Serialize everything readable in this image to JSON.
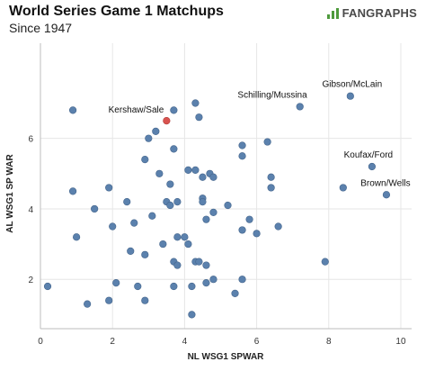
{
  "header": {
    "title": "World Series Game 1 Matchups",
    "subtitle": "Since 1947",
    "brand": "FANGRAPHS"
  },
  "colors": {
    "point": "#5b81ad",
    "point_stroke": "#44658c",
    "highlight": "#d9534f",
    "grid": "#e6e6e6",
    "axis": "#bdbdbd"
  },
  "icons": {
    "brand": "fangraphs-logo-icon"
  },
  "chart_data": {
    "type": "scatter",
    "title": "World Series Game 1 Matchups",
    "subtitle": "Since 1947",
    "xlabel": "NL WSG1 SPWAR",
    "ylabel": "AL WSG1 SP WAR",
    "xlim": [
      0,
      10.3
    ],
    "ylim": [
      0.6,
      8.7
    ],
    "xticks": [
      0,
      2,
      4,
      6,
      8,
      10
    ],
    "yticks": [
      2,
      4,
      6
    ],
    "grid": true,
    "points": [
      {
        "x": 0.2,
        "y": 1.8
      },
      {
        "x": 0.9,
        "y": 6.8
      },
      {
        "x": 0.9,
        "y": 4.5
      },
      {
        "x": 1.0,
        "y": 3.2
      },
      {
        "x": 1.3,
        "y": 1.3
      },
      {
        "x": 1.5,
        "y": 4.0
      },
      {
        "x": 1.9,
        "y": 4.6
      },
      {
        "x": 1.9,
        "y": 1.4
      },
      {
        "x": 2.0,
        "y": 3.5
      },
      {
        "x": 2.1,
        "y": 1.9
      },
      {
        "x": 2.4,
        "y": 4.2
      },
      {
        "x": 2.5,
        "y": 2.8
      },
      {
        "x": 2.6,
        "y": 3.6
      },
      {
        "x": 2.7,
        "y": 1.8
      },
      {
        "x": 2.9,
        "y": 1.4
      },
      {
        "x": 2.9,
        "y": 5.4
      },
      {
        "x": 2.9,
        "y": 2.7
      },
      {
        "x": 3.0,
        "y": 6.0
      },
      {
        "x": 3.1,
        "y": 3.8
      },
      {
        "x": 3.2,
        "y": 6.2
      },
      {
        "x": 3.3,
        "y": 5.0
      },
      {
        "x": 3.4,
        "y": 3.0
      },
      {
        "x": 3.5,
        "y": 4.2
      },
      {
        "x": 3.6,
        "y": 4.7
      },
      {
        "x": 3.6,
        "y": 4.1
      },
      {
        "x": 3.7,
        "y": 6.8
      },
      {
        "x": 3.7,
        "y": 5.7
      },
      {
        "x": 3.7,
        "y": 2.5
      },
      {
        "x": 3.7,
        "y": 1.8
      },
      {
        "x": 3.8,
        "y": 4.2
      },
      {
        "x": 3.8,
        "y": 3.2
      },
      {
        "x": 3.8,
        "y": 2.4
      },
      {
        "x": 4.0,
        "y": 3.2
      },
      {
        "x": 4.1,
        "y": 5.1
      },
      {
        "x": 4.1,
        "y": 3.0
      },
      {
        "x": 4.2,
        "y": 1.0
      },
      {
        "x": 4.2,
        "y": 1.8
      },
      {
        "x": 4.3,
        "y": 7.0
      },
      {
        "x": 4.3,
        "y": 5.1
      },
      {
        "x": 4.3,
        "y": 2.5
      },
      {
        "x": 4.4,
        "y": 6.6
      },
      {
        "x": 4.4,
        "y": 2.5
      },
      {
        "x": 4.5,
        "y": 4.9
      },
      {
        "x": 4.5,
        "y": 4.3
      },
      {
        "x": 4.5,
        "y": 4.2
      },
      {
        "x": 4.6,
        "y": 3.7
      },
      {
        "x": 4.6,
        "y": 2.4
      },
      {
        "x": 4.6,
        "y": 1.9
      },
      {
        "x": 4.7,
        "y": 5.0
      },
      {
        "x": 4.8,
        "y": 4.9
      },
      {
        "x": 4.8,
        "y": 3.9
      },
      {
        "x": 4.8,
        "y": 2.0
      },
      {
        "x": 5.2,
        "y": 4.1
      },
      {
        "x": 5.4,
        "y": 1.6
      },
      {
        "x": 5.6,
        "y": 5.8
      },
      {
        "x": 5.6,
        "y": 5.5
      },
      {
        "x": 5.6,
        "y": 3.4
      },
      {
        "x": 5.6,
        "y": 2.0
      },
      {
        "x": 5.8,
        "y": 3.7
      },
      {
        "x": 6.0,
        "y": 3.3
      },
      {
        "x": 6.3,
        "y": 5.9
      },
      {
        "x": 6.4,
        "y": 4.9
      },
      {
        "x": 6.4,
        "y": 4.6
      },
      {
        "x": 6.6,
        "y": 3.5
      },
      {
        "x": 7.9,
        "y": 2.5
      },
      {
        "x": 8.4,
        "y": 4.6
      }
    ],
    "labeled_points": [
      {
        "label": "Kershaw/Sale",
        "x": 3.5,
        "y": 6.5,
        "highlight": true
      },
      {
        "label": "Schilling/Mussina",
        "x": 7.2,
        "y": 6.9,
        "highlight": false
      },
      {
        "label": "Gibson/McLain",
        "x": 8.6,
        "y": 7.2,
        "highlight": false
      },
      {
        "label": "Koufax/Ford",
        "x": 9.2,
        "y": 5.2,
        "highlight": false
      },
      {
        "label": "Brown/Wells",
        "x": 9.6,
        "y": 4.4,
        "highlight": false
      }
    ]
  }
}
